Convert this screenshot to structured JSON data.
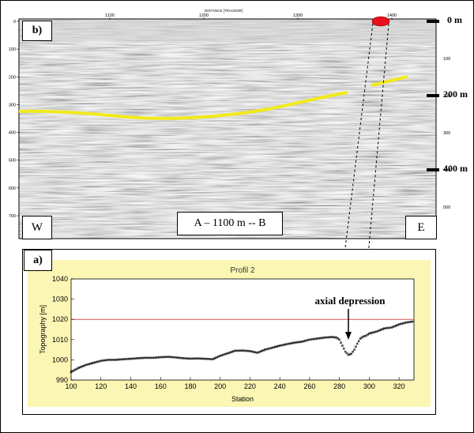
{
  "panel_b": {
    "label": "b)",
    "distance_title": "DISTANCE [TRACENR]",
    "x_ticks": [
      "1100",
      "1200",
      "1300",
      "1400"
    ],
    "left_ticks": [
      "0",
      "100",
      "200",
      "300",
      "400",
      "500",
      "600",
      "700"
    ],
    "right_ticks": [
      "100",
      "200",
      "300",
      "400",
      "500"
    ],
    "depth_markers": [
      "0 m",
      "200 m",
      "400 m"
    ],
    "west_label": "W",
    "east_label": "E",
    "profile_label": "A – 1100 m -- B",
    "reflector_color": "#f2ea1c",
    "marker_color": "#e8101a"
  },
  "panel_a": {
    "label": "a)",
    "chart_data": {
      "type": "line",
      "title": "Profil 2",
      "xlabel": "Station",
      "ylabel": "Topography [m]",
      "xlim": [
        100,
        330
      ],
      "ylim": [
        990,
        1040
      ],
      "x_ticks": [
        "100",
        "120",
        "140",
        "160",
        "180",
        "200",
        "220",
        "240",
        "260",
        "280",
        "300",
        "320"
      ],
      "y_ticks": [
        "990",
        "1000",
        "1010",
        "1020",
        "1030",
        "1040"
      ],
      "reference_line": 1020,
      "reference_color": "#d9534f",
      "series": [
        {
          "x": [
            100,
            105,
            110,
            115,
            120,
            125,
            130,
            135,
            140,
            145,
            150,
            155,
            160,
            165,
            170,
            175,
            180,
            185,
            190,
            195,
            200,
            205,
            210,
            215,
            220,
            225,
            230,
            235,
            240,
            245,
            250,
            255,
            260,
            265,
            270,
            275,
            278,
            280,
            282,
            284,
            286,
            288,
            290,
            292,
            294,
            296,
            298,
            300,
            305,
            310,
            315,
            320,
            325,
            330
          ],
          "y": [
            994,
            996,
            997.5,
            998.5,
            999.5,
            1000,
            1000,
            1000.3,
            1000.5,
            1000.8,
            1001,
            1001,
            1001.3,
            1001.5,
            1001.2,
            1000.8,
            1000.6,
            1000.7,
            1000.5,
            1000.3,
            1002,
            1003.2,
            1004.5,
            1004.6,
            1004.3,
            1003.5,
            1005,
            1006,
            1007,
            1007.8,
            1008.5,
            1009,
            1010,
            1010.5,
            1011,
            1011.3,
            1011,
            1010,
            1007,
            1004,
            1002.5,
            1003,
            1005,
            1008,
            1010.5,
            1011.5,
            1012,
            1013,
            1014,
            1015.5,
            1016,
            1017.5,
            1018.5,
            1019
          ]
        }
      ],
      "annotation": "axial depression"
    }
  }
}
